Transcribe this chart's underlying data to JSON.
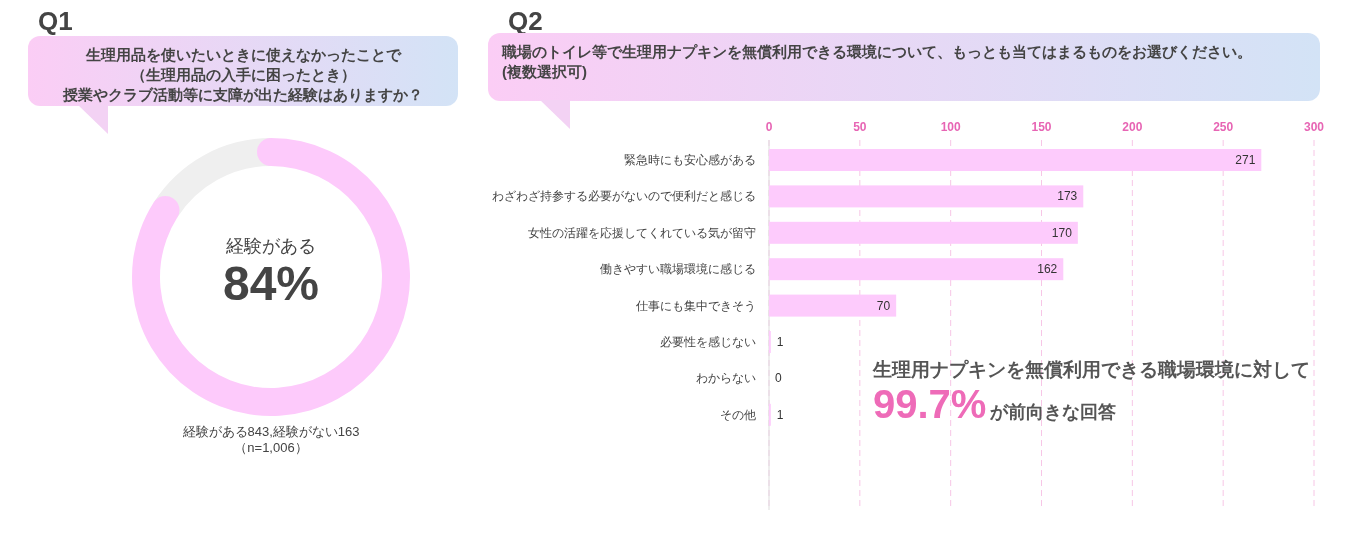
{
  "chart_data": [
    {
      "type": "donut",
      "title": "Q1",
      "subtitle": "生理用品を使いたいときに使えなかったことで",
      "categories": [
        null,
        null
      ],
      "values": [
        84,
        16
      ],
      "colors": [
        "#fdcafb",
        "#efefef"
      ],
      "annotations": [
        "（生理用品の入手に困ったとき）",
        "授業やクラブ活動等に支障が出た経験はありますか？",
        "経験がある",
        "84%",
        "経験がある843,経験がない163",
        "（n=1,006）"
      ]
    },
    {
      "type": "bar",
      "orientation": "horizontal",
      "title": "Q2",
      "subtitle": "職場のトイレ等で生理用ナプキンを無償利用できる環境について、もっとも当てはまるものをお選びください。\n(複数選択可)",
      "categories": [
        "緊急時にも安心感がある",
        "わざわざ持参する必要がないので便利だと感じる",
        "女性の活躍を応援してくれている気が留守",
        "働きやすい職場環境に感じる",
        "仕事にも集中できそう",
        "必要性を感じない",
        "わからない",
        "その他"
      ],
      "values": [
        271,
        173,
        170,
        162,
        70,
        1,
        0,
        1
      ],
      "color": "#fdcbfc",
      "xlim": [
        0,
        300
      ],
      "xticks": [
        0,
        50,
        100,
        150,
        200,
        250,
        300
      ],
      "grid": "x",
      "data_labels": true,
      "annotations": [
        "生理用ナプキンを無償利用できる職場環境に対して",
        "99.7%",
        "が前向きな回答"
      ]
    }
  ]
}
